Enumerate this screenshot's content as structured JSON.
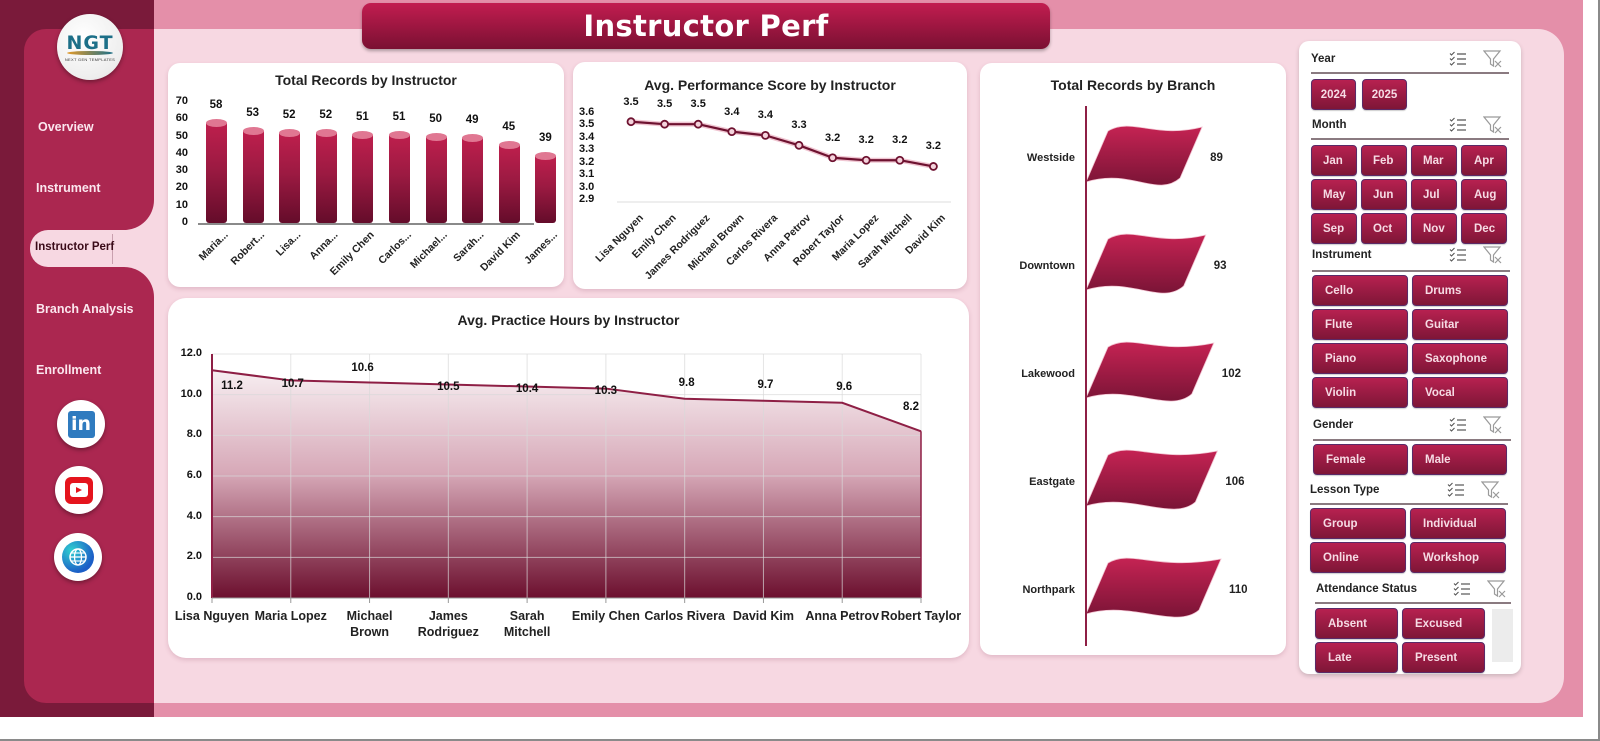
{
  "page": {
    "title": "Instructor Perf"
  },
  "logo": {
    "text": "NGT",
    "subtitle": "NEXT GEN TEMPLATES"
  },
  "sidebar": {
    "items": [
      {
        "label": "Overview",
        "active": false
      },
      {
        "label": "Instrument",
        "active": false
      },
      {
        "label": "Instructor Perf",
        "active": true
      },
      {
        "label": "Branch Analysis",
        "active": false
      },
      {
        "label": "Enrollment",
        "active": false
      }
    ],
    "social": [
      {
        "name": "linkedin-icon",
        "glyph": "in"
      },
      {
        "name": "youtube-icon",
        "glyph": ""
      },
      {
        "name": "globe-icon",
        "glyph": ""
      }
    ]
  },
  "colors": {
    "accent": "#ab2750",
    "accent_dark": "#7a1a3a",
    "background": "#f7d8e2",
    "outer": "#e48fa9",
    "line": "#8e1f45"
  },
  "chart_data": [
    {
      "id": "total-records-by-instructor",
      "type": "bar",
      "title": "Total Records by Instructor",
      "categories": [
        "Maria...",
        "Robert...",
        "Lisa...",
        "Anna...",
        "Emily Chen",
        "Carlos...",
        "Michael...",
        "Sarah...",
        "David Kim",
        "James..."
      ],
      "values": [
        58,
        53,
        52,
        52,
        51,
        51,
        50,
        49,
        45,
        39
      ],
      "yticks": [
        "70",
        "60",
        "50",
        "40",
        "30",
        "20",
        "10",
        "0"
      ],
      "ylim": [
        0,
        70
      ],
      "xlabel": "",
      "ylabel": "",
      "grid": false,
      "legend": "none"
    },
    {
      "id": "avg-performance-score",
      "type": "line",
      "title": "Avg. Performance  Score by Instructor",
      "categories": [
        "Lisa Nguyen",
        "Emily Chen",
        "James Rodriguez",
        "Michael Brown",
        "Carlos Rivera",
        "Anna Petrov",
        "Robert Taylor",
        "Maria Lopez",
        "Sarah Mitchell",
        "David Kim"
      ],
      "values": [
        3.53,
        3.51,
        3.51,
        3.45,
        3.42,
        3.34,
        3.24,
        3.22,
        3.22,
        3.17
      ],
      "labels": [
        "3.5",
        "3.5",
        "3.5",
        "3.4",
        "3.4",
        "3.3",
        "3.2",
        "3.2",
        "3.2",
        "3.2"
      ],
      "yticks": [
        "3.6",
        "3.5",
        "3.4",
        "3.3",
        "3.2",
        "3.1",
        "3.0",
        "2.9"
      ],
      "ylim": [
        2.9,
        3.6
      ],
      "xlabel": "",
      "ylabel": "",
      "grid": false,
      "legend": "none"
    },
    {
      "id": "avg-practice-hours",
      "type": "area",
      "title": "Avg. Practice Hours by Instructor",
      "categories": [
        "Lisa Nguyen",
        "Maria Lopez",
        "Michael Brown",
        "James Rodriguez",
        "Sarah Mitchell",
        "Emily Chen",
        "Carlos Rivera",
        "David Kim",
        "Anna Petrov",
        "Robert Taylor"
      ],
      "category_lines": [
        [
          "Lisa Nguyen"
        ],
        [
          "Maria Lopez"
        ],
        [
          "Michael",
          "Brown"
        ],
        [
          "James",
          "Rodriguez"
        ],
        [
          "Sarah",
          "Mitchell"
        ],
        [
          "Emily Chen"
        ],
        [
          "Carlos Rivera"
        ],
        [
          "David Kim"
        ],
        [
          "Anna Petrov"
        ],
        [
          "Robert Taylor"
        ]
      ],
      "values": [
        11.2,
        10.7,
        10.6,
        10.5,
        10.4,
        10.3,
        9.8,
        9.7,
        9.6,
        8.2
      ],
      "labels": [
        "11.2",
        "10.7",
        "10.6",
        "10.5",
        "10.4",
        "10.3",
        "9.8",
        "9.7",
        "9.6",
        "8.2"
      ],
      "yticks": [
        "12.0",
        "10.0",
        "8.0",
        "6.0",
        "4.0",
        "2.0",
        "0.0"
      ],
      "ylim": [
        0,
        12
      ],
      "xlabel": "",
      "ylabel": "",
      "grid": true,
      "legend": "none"
    },
    {
      "id": "total-records-by-branch",
      "type": "bar",
      "orientation": "horizontal",
      "title": "Total Records by Branch",
      "categories": [
        "Westside",
        "Downtown",
        "Lakewood",
        "Eastgate",
        "Northpark"
      ],
      "values": [
        89,
        93,
        102,
        106,
        110
      ],
      "labels": [
        "89",
        "93",
        "102",
        "106",
        "110"
      ],
      "xlabel": "",
      "ylabel": "",
      "grid": false,
      "legend": "none"
    }
  ],
  "slicers": [
    {
      "header": "Year",
      "items": [
        "2024",
        "2025"
      ]
    },
    {
      "header": "Month",
      "items": [
        "Jan",
        "Feb",
        "Mar",
        "Apr",
        "May",
        "Jun",
        "Jul",
        "Aug",
        "Sep",
        "Oct",
        "Nov",
        "Dec"
      ]
    },
    {
      "header": "Instrument",
      "items": [
        "Cello",
        "Drums",
        "Flute",
        "Guitar",
        "Piano",
        "Saxophone",
        "Violin",
        "Vocal"
      ]
    },
    {
      "header": "Gender",
      "items": [
        "Female",
        "Male"
      ]
    },
    {
      "header": "Lesson Type",
      "items": [
        "Group",
        "Individual",
        "Online",
        "Workshop"
      ]
    },
    {
      "header": "Attendance Status",
      "items": [
        "Absent",
        "Excused",
        "Late",
        "Present"
      ]
    }
  ]
}
